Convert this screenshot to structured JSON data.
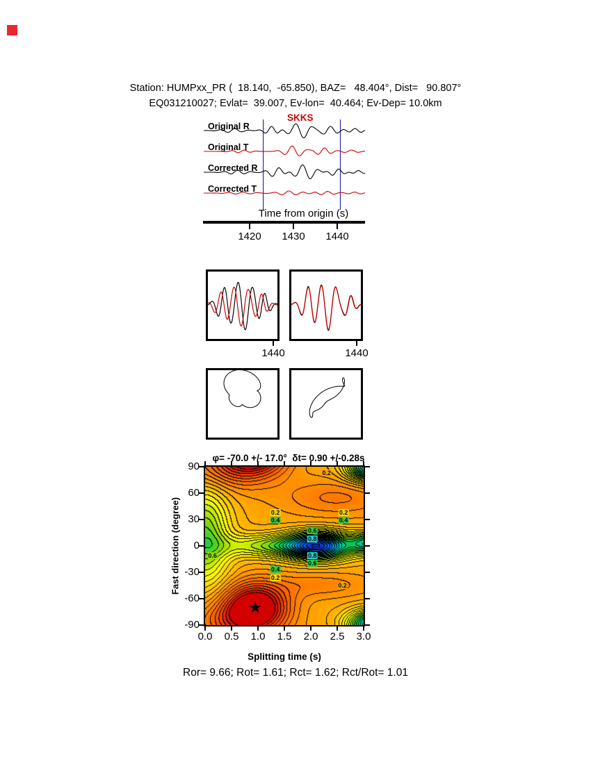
{
  "colors": {
    "trace_black": "#000000",
    "trace_red": "#cc0000",
    "window_line": "#2828b4",
    "phase_red": "#d40000",
    "corner_mark": "#e8282d"
  },
  "header": {
    "line1": "Station: HUMPxx_PR (  18.140,  -65.850), BAZ=   48.404°, Dist=   90.807°",
    "line2": "EQ031210027; Evlat=  39.007, Ev-lon=  40.464; Ev-Dep= 10.0km"
  },
  "footer": {
    "text": "Ror= 9.66; Rot= 1.61; Rct= 1.62; Rct/Rot= 1.01"
  },
  "chart_data": [
    {
      "id": "seismogram-traces",
      "type": "line",
      "phase_label": "SKKS",
      "xlabel": "Time from origin (s)",
      "x_range": [
        1409.5,
        1446.1
      ],
      "x_ticks": [
        "1420",
        "1430",
        "1440"
      ],
      "window": [
        1423,
        1440.5
      ],
      "traces": [
        {
          "label": "Original R",
          "color": "#000000",
          "components": [
            {
              "a": 3,
              "c": 1416,
              "w": 3,
              "f": 0.3,
              "p": 0.5
            },
            {
              "a": 6,
              "c": 1425,
              "w": 2.2,
              "f": 0.33,
              "p": 1.8
            },
            {
              "a": 11,
              "c": 1431.5,
              "w": 3.2,
              "f": 0.26,
              "p": 3.5
            },
            {
              "a": 6,
              "c": 1438,
              "w": 2.5,
              "f": 0.3,
              "p": 1.0
            },
            {
              "a": 3,
              "c": 1444,
              "w": 2.5,
              "f": 0.35,
              "p": 2.0
            }
          ]
        },
        {
          "label": "Original T",
          "color": "#cc0000",
          "components": [
            {
              "a": 2,
              "c": 1418,
              "w": 3,
              "f": 0.35,
              "p": 0
            },
            {
              "a": 8,
              "c": 1430,
              "w": 2.8,
              "f": 0.28,
              "p": 2.4
            },
            {
              "a": 5,
              "c": 1436.5,
              "w": 2.5,
              "f": 0.32,
              "p": 0.7
            },
            {
              "a": 2,
              "c": 1443,
              "w": 2.5,
              "f": 0.3,
              "p": 1.5
            }
          ]
        },
        {
          "label": "Corrected R",
          "color": "#000000",
          "components": [
            {
              "a": 3,
              "c": 1417,
              "w": 3,
              "f": 0.32,
              "p": 1.2
            },
            {
              "a": 7,
              "c": 1426,
              "w": 2.4,
              "f": 0.3,
              "p": 0.4
            },
            {
              "a": 11,
              "c": 1432.5,
              "w": 3.0,
              "f": 0.27,
              "p": 2.6
            },
            {
              "a": 5,
              "c": 1439.5,
              "w": 2.3,
              "f": 0.33,
              "p": 0.2
            },
            {
              "a": 2.5,
              "c": 1444.5,
              "w": 2,
              "f": 0.35,
              "p": 1.4
            }
          ]
        },
        {
          "label": "Corrected T",
          "color": "#cc0000",
          "components": [
            {
              "a": 1.5,
              "c": 1418,
              "w": 4,
              "f": 0.3,
              "p": 0.8
            },
            {
              "a": 3,
              "c": 1429,
              "w": 3.5,
              "f": 0.3,
              "p": 1.9
            },
            {
              "a": 2.5,
              "c": 1437,
              "w": 3,
              "f": 0.33,
              "p": 0.3
            },
            {
              "a": 1.5,
              "c": 1444,
              "w": 2.5,
              "f": 0.35,
              "p": 2.2
            }
          ]
        }
      ]
    },
    {
      "id": "windowed-component-compare",
      "type": "line",
      "x_tick_label": "1440",
      "t_range": [
        0,
        17.5
      ],
      "panels": [
        {
          "traces": [
            {
              "color": "#000000",
              "components": [
                {
                  "a": 22,
                  "c": 4,
                  "w": 2.5,
                  "f": 0.3,
                  "p": 1.2
                },
                {
                  "a": 36,
                  "c": 9,
                  "w": 3.2,
                  "f": 0.27,
                  "p": 4.0
                },
                {
                  "a": 16,
                  "c": 14,
                  "w": 2.2,
                  "f": 0.33,
                  "p": 1.0
                }
              ]
            },
            {
              "color": "#cc0000",
              "components": [
                {
                  "a": 17,
                  "c": 3.4,
                  "w": 2.5,
                  "f": 0.3,
                  "p": 1.7
                },
                {
                  "a": 30,
                  "c": 8.3,
                  "w": 3.2,
                  "f": 0.27,
                  "p": 4.6
                },
                {
                  "a": 14,
                  "c": 13.5,
                  "w": 2.2,
                  "f": 0.33,
                  "p": 1.6
                }
              ]
            }
          ]
        },
        {
          "traces": [
            {
              "color": "#000000",
              "components": [
                {
                  "a": 26,
                  "c": 4.5,
                  "w": 2.6,
                  "f": 0.28,
                  "p": 2.0
                },
                {
                  "a": 36,
                  "c": 9.5,
                  "w": 3.0,
                  "f": 0.26,
                  "p": 5.0
                },
                {
                  "a": 13,
                  "c": 14.5,
                  "w": 2.0,
                  "f": 0.34,
                  "p": 0.4
                }
              ]
            },
            {
              "color": "#cc0000",
              "components": [
                {
                  "a": 25,
                  "c": 4.55,
                  "w": 2.6,
                  "f": 0.28,
                  "p": 2.07
                },
                {
                  "a": 35,
                  "c": 9.55,
                  "w": 3.0,
                  "f": 0.26,
                  "p": 5.07
                },
                {
                  "a": 13,
                  "c": 14.6,
                  "w": 2.0,
                  "f": 0.34,
                  "p": 0.47
                }
              ]
            }
          ]
        }
      ]
    },
    {
      "id": "particle-motion",
      "type": "line",
      "t_range": [
        0,
        18
      ],
      "panels": [
        {
          "x_components": [
            {
              "a": 40,
              "c": 9,
              "w": 6,
              "f": 0.055,
              "p": 0.2
            },
            {
              "a": 10,
              "c": 9,
              "w": 5,
              "f": 0.22,
              "p": 1.0
            }
          ],
          "y_components": [
            {
              "a": 38,
              "c": 8.5,
              "w": 6,
              "f": 0.05,
              "p": 1.6
            },
            {
              "a": 9,
              "c": 9,
              "w": 5,
              "f": 0.22,
              "p": 2.8
            }
          ]
        },
        {
          "x_components": [
            {
              "a": 40,
              "c": 9,
              "w": 6,
              "f": 0.055,
              "p": 0.3
            },
            {
              "a": 8,
              "c": 9,
              "w": 5,
              "f": 0.22,
              "p": 1.2
            }
          ],
          "y_components": [
            {
              "a": 40,
              "c": 9,
              "w": 6,
              "f": 0.055,
              "p": 0.55
            },
            {
              "a": 8,
              "c": 9,
              "w": 5,
              "f": 0.22,
              "p": 2.9
            }
          ]
        }
      ]
    },
    {
      "id": "splitting-error-surface",
      "type": "heatmap",
      "title": "φ= -70.0 +/- 17.0°  δt= 0.90 +/-0.28s",
      "xlabel": "Splitting time (s)",
      "ylabel": "Fast direction (degree)",
      "xlim": [
        0,
        3
      ],
      "ylim": [
        -90,
        90
      ],
      "x_ticks": [
        "0.0",
        "0.5",
        "1.0",
        "1.5",
        "2.0",
        "2.5",
        "3.0"
      ],
      "y_ticks": [
        "90",
        "60",
        "30",
        "0",
        "-30",
        "-60",
        "-90"
      ],
      "best": {
        "phi": -70.0,
        "phi_err": 17.0,
        "dt": 0.9,
        "dt_err": 0.28
      },
      "star": {
        "x": 0.95,
        "y": -70,
        "glyph": "★"
      },
      "contour_step": 0.033,
      "surface_model": {
        "base": 0.7,
        "period_y": 180,
        "blobs": [
          {
            "x": 0.95,
            "y": -70,
            "sx": 0.6,
            "sy": 26,
            "a": 0.4
          },
          {
            "x": 2.15,
            "y": 0,
            "sx": 0.6,
            "sy": 15,
            "a": -0.6
          },
          {
            "x": 3.1,
            "y": 3,
            "sx": 0.35,
            "sy": 12,
            "a": -0.35
          },
          {
            "x": 3.15,
            "y": -90,
            "sx": 0.45,
            "sy": 16,
            "a": -0.5
          },
          {
            "x": 0.0,
            "y": 10,
            "sx": 0.45,
            "sy": 55,
            "a": -0.28
          },
          {
            "x": 1.2,
            "y": 0,
            "sx": 0.9,
            "sy": 13,
            "a": -0.22
          },
          {
            "x": 2.5,
            "y": 55,
            "sx": 1.1,
            "sy": 22,
            "a": 0.1
          },
          {
            "x": 2.2,
            "y": -45,
            "sx": 1.0,
            "sy": 15,
            "a": 0.08
          },
          {
            "x": 0.4,
            "y": 90,
            "sx": 0.8,
            "sy": 25,
            "a": 0.15
          }
        ]
      },
      "colormap": [
        [
          0.0,
          "#1414c8"
        ],
        [
          0.14,
          "#0a78ff"
        ],
        [
          0.26,
          "#00c8c8"
        ],
        [
          0.36,
          "#00c850"
        ],
        [
          0.46,
          "#96dc00"
        ],
        [
          0.56,
          "#ffff00"
        ],
        [
          0.68,
          "#ffb400"
        ],
        [
          0.8,
          "#ff7800"
        ],
        [
          0.9,
          "#f04600"
        ],
        [
          1.0,
          "#d20000"
        ]
      ],
      "labels": [
        {
          "t": "0.2",
          "x": 1.33,
          "y": 38,
          "bg": "#ffd700"
        },
        {
          "t": "0.2",
          "x": 2.62,
          "y": 38,
          "bg": "#ffd700"
        },
        {
          "t": "0.4",
          "x": 1.33,
          "y": 29,
          "bg": "#3ec63e"
        },
        {
          "t": "0.4",
          "x": 2.62,
          "y": 29,
          "bg": "#3ec63e"
        },
        {
          "t": "0.6",
          "x": 2.03,
          "y": 17,
          "bg": "#3ec63e"
        },
        {
          "t": "0.8",
          "x": 2.03,
          "y": 8,
          "bg": "#2ec8c8"
        },
        {
          "t": "0.8",
          "x": 2.03,
          "y": -11,
          "bg": "#2ec8c8"
        },
        {
          "t": "0.6",
          "x": 2.03,
          "y": -20,
          "bg": "#3ec63e"
        },
        {
          "t": "0.4",
          "x": 1.33,
          "y": -27,
          "bg": "#3ec63e"
        },
        {
          "t": "0.2",
          "x": 1.33,
          "y": -36,
          "bg": "#ffd700"
        },
        {
          "t": "0.2",
          "x": 2.6,
          "y": -45,
          "bg": "#ffa000"
        },
        {
          "t": "0.2",
          "x": 2.3,
          "y": 83,
          "bg": "#ffa000"
        },
        {
          "t": "0.6",
          "x": 0.14,
          "y": -11,
          "bg": "#96dc00"
        }
      ]
    }
  ]
}
